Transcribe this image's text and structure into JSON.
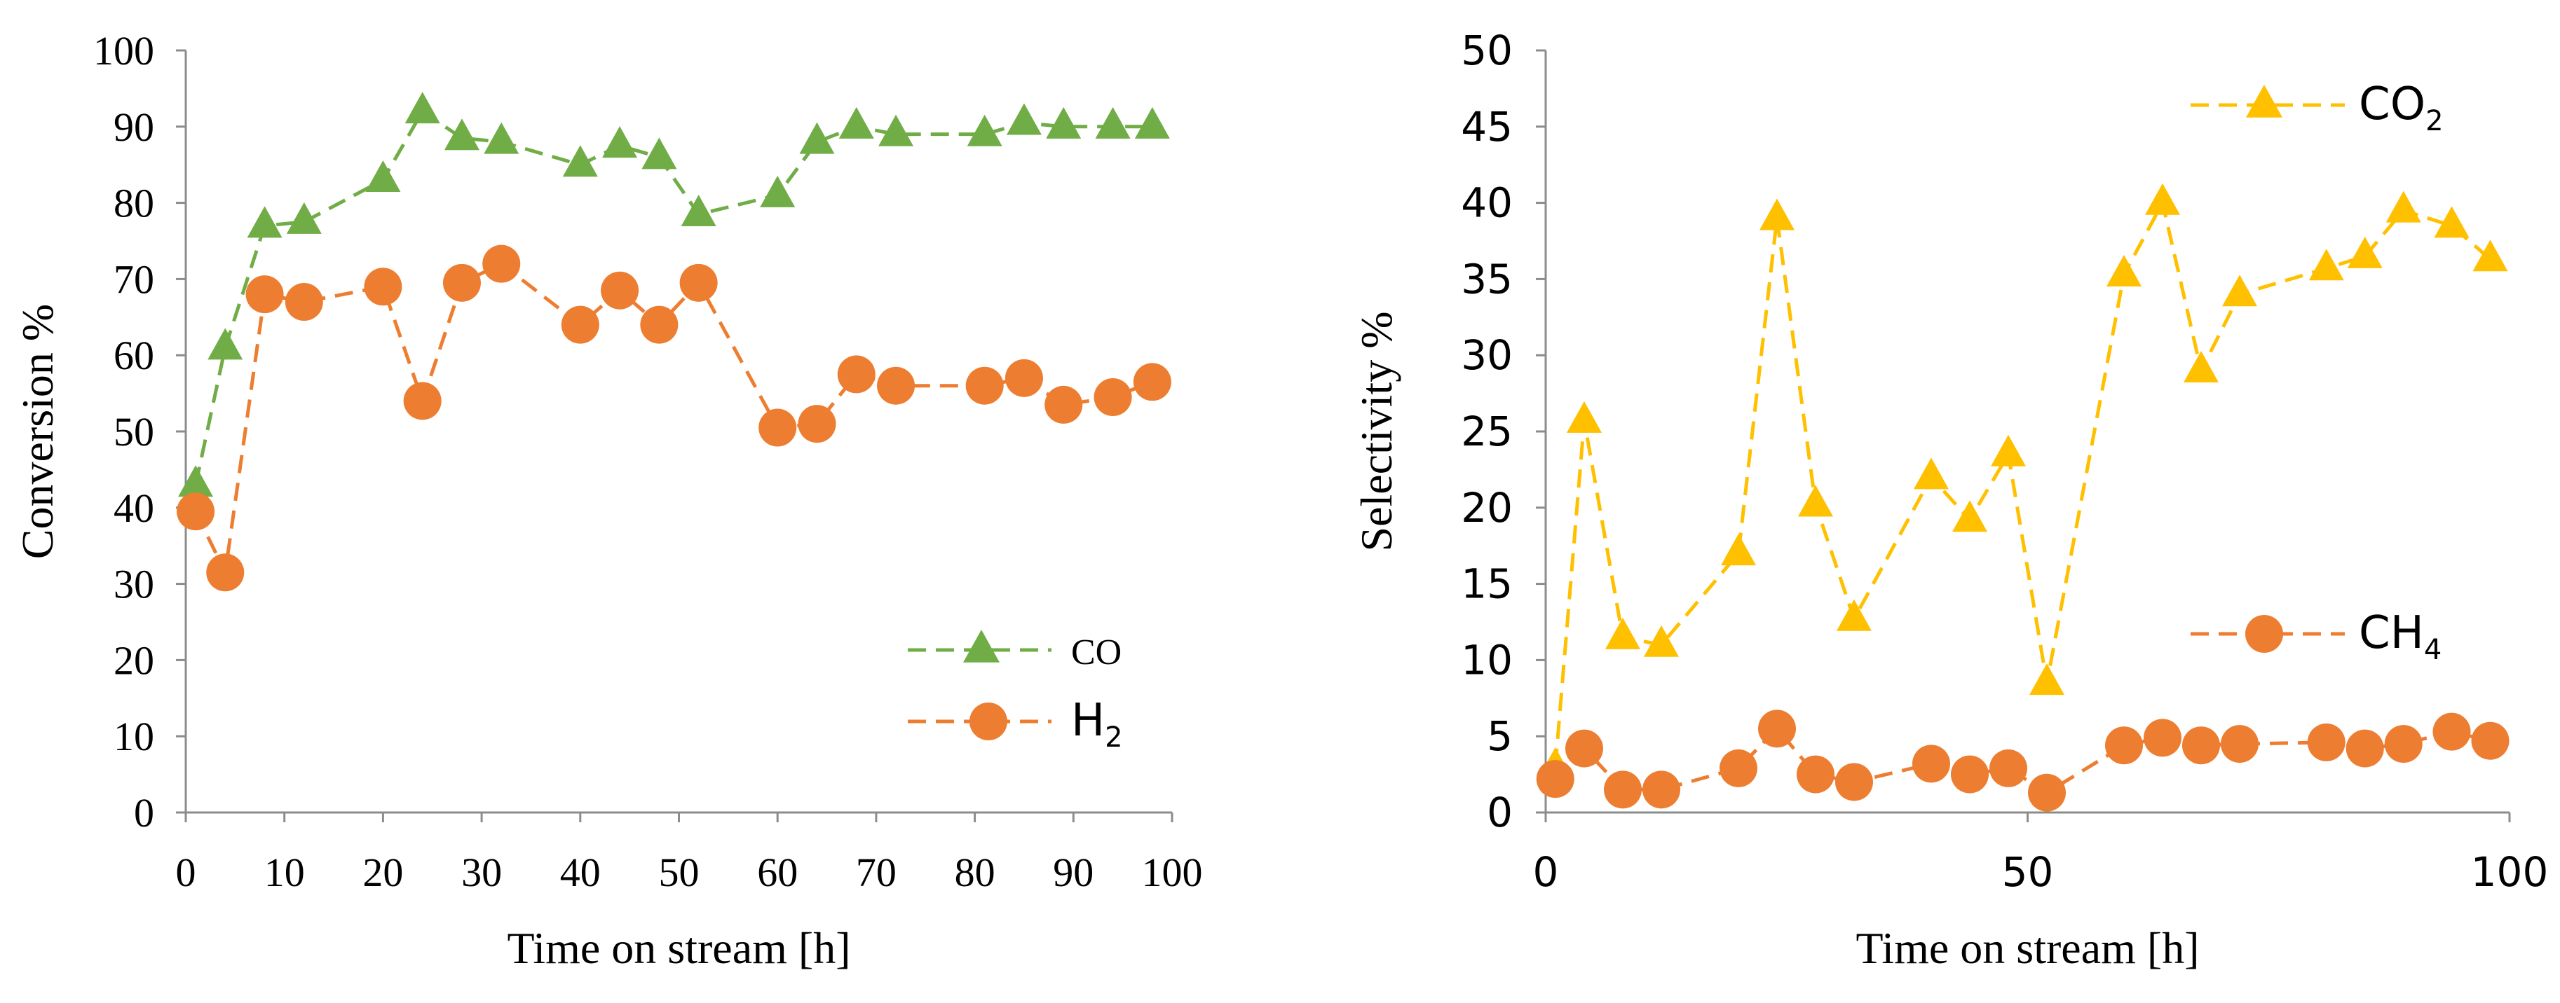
{
  "chart_data": [
    {
      "type": "line",
      "xlabel": "Time on stream [h]",
      "ylabel": "Conversion %",
      "xlim": [
        0,
        100
      ],
      "ylim": [
        0,
        100
      ],
      "x_ticks": [
        "0",
        "10",
        "20",
        "30",
        "40",
        "50",
        "60",
        "70",
        "80",
        "90",
        "100"
      ],
      "y_ticks": [
        "0",
        "10",
        "20",
        "30",
        "40",
        "50",
        "60",
        "70",
        "80",
        "90",
        "100"
      ],
      "grid": false,
      "legend_position": "bottom-right",
      "series": [
        {
          "name": "CO",
          "label_main": "CO",
          "label_sub": "",
          "color": "#70AD47",
          "marker": "triangle",
          "x": [
            1,
            4,
            8,
            12,
            20,
            24,
            28,
            32,
            40,
            44,
            48,
            52,
            60,
            64,
            68,
            72,
            81,
            85,
            89,
            94,
            98
          ],
          "values": [
            43,
            61,
            77,
            77.5,
            83,
            92,
            88.5,
            88,
            85,
            87.5,
            86,
            78.5,
            81,
            88,
            90,
            89,
            89,
            90.5,
            90,
            90,
            90
          ]
        },
        {
          "name": "H2",
          "label_main": "H",
          "label_sub": "2",
          "color": "#ED7D31",
          "marker": "circle",
          "x": [
            1,
            4,
            8,
            12,
            20,
            24,
            28,
            32,
            40,
            44,
            48,
            52,
            60,
            64,
            68,
            72,
            81,
            85,
            89,
            94,
            98
          ],
          "values": [
            39.5,
            31.5,
            68,
            67,
            69,
            54,
            69.5,
            72,
            64,
            68.5,
            64,
            69.5,
            50.5,
            51,
            57.5,
            56,
            56,
            57,
            53.5,
            54.5,
            56.5
          ]
        }
      ]
    },
    {
      "type": "line",
      "xlabel": "Time on stream [h]",
      "ylabel": "Selectivity %",
      "xlim": [
        0,
        100
      ],
      "ylim": [
        0,
        50
      ],
      "x_ticks": [
        "0",
        "50",
        "100"
      ],
      "y_ticks": [
        "0",
        "5",
        "10",
        "15",
        "20",
        "25",
        "30",
        "35",
        "40",
        "45",
        "50"
      ],
      "grid": false,
      "legend_position": "right",
      "series": [
        {
          "name": "CO2",
          "label_main": "CO",
          "label_sub": "2",
          "color": "#FFC000",
          "marker": "triangle",
          "x": [
            1,
            4,
            8,
            12,
            20,
            24,
            28,
            32,
            40,
            44,
            48,
            52,
            60,
            64,
            68,
            72,
            81,
            85,
            89,
            94,
            98
          ],
          "values": [
            3,
            25.7,
            11.5,
            11,
            17,
            39,
            20.2,
            12.7,
            22,
            19.2,
            23.5,
            8.5,
            35.3,
            40,
            29,
            34,
            35.7,
            36.5,
            39.5,
            38.5,
            36.3
          ]
        },
        {
          "name": "CH4",
          "label_main": "CH",
          "label_sub": "4",
          "color": "#ED7D31",
          "marker": "circle",
          "x": [
            1,
            4,
            8,
            12,
            20,
            24,
            28,
            32,
            40,
            44,
            48,
            52,
            60,
            64,
            68,
            72,
            81,
            85,
            89,
            94,
            98
          ],
          "values": [
            2.2,
            4.2,
            1.5,
            1.5,
            2.9,
            5.5,
            2.5,
            2,
            3.2,
            2.5,
            2.9,
            1.3,
            4.4,
            4.9,
            4.4,
            4.5,
            4.6,
            4.2,
            4.5,
            5.3,
            4.7
          ]
        }
      ]
    }
  ]
}
